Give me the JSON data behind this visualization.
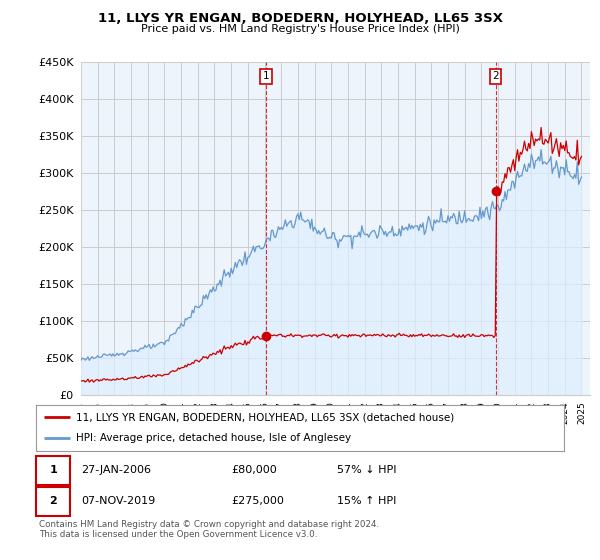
{
  "title": "11, LLYS YR ENGAN, BODEDERN, HOLYHEAD, LL65 3SX",
  "subtitle": "Price paid vs. HM Land Registry's House Price Index (HPI)",
  "ylim": [
    0,
    450000
  ],
  "yticks": [
    0,
    50000,
    100000,
    150000,
    200000,
    250000,
    300000,
    350000,
    400000,
    450000
  ],
  "ytick_labels": [
    "£0",
    "£50K",
    "£100K",
    "£150K",
    "£200K",
    "£250K",
    "£300K",
    "£350K",
    "£400K",
    "£450K"
  ],
  "legend_entries": [
    "11, LLYS YR ENGAN, BODEDERN, HOLYHEAD, LL65 3SX (detached house)",
    "HPI: Average price, detached house, Isle of Anglesey"
  ],
  "legend_colors": [
    "#cc0000",
    "#6699cc"
  ],
  "sale1_date": "27-JAN-2006",
  "sale1_price": "£80,000",
  "sale1_hpi": "57% ↓ HPI",
  "sale2_date": "07-NOV-2019",
  "sale2_price": "£275,000",
  "sale2_hpi": "15% ↑ HPI",
  "footnote": "Contains HM Land Registry data © Crown copyright and database right 2024.\nThis data is licensed under the Open Government Licence v3.0.",
  "hpi_color": "#6699cc",
  "sale_color": "#cc0000",
  "vline_color": "#cc0000",
  "grid_color": "#cccccc",
  "fill_color": "#ddeeff",
  "background_color": "#ffffff",
  "chart_bg_color": "#eef4fb"
}
